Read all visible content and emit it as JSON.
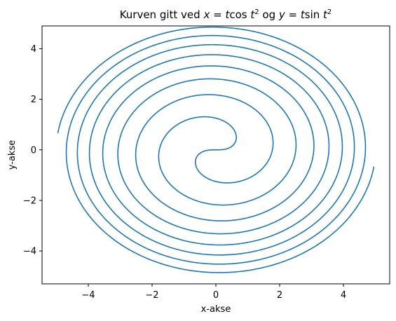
{
  "chart_data": {
    "type": "line",
    "title": "Kurven gitt ved x = tcos t² og y = tsin t²",
    "title_parts": {
      "prefix": "Kurven gitt ved ",
      "x_var": "x",
      "eq1": " = ",
      "t1": "t",
      "cos": "cos",
      "t2": " t",
      "sup1": "2",
      "og": " og ",
      "y_var": "y",
      "eq2": " = ",
      "t3": "t",
      "sin": "sin",
      "t4": " t",
      "sup2": "2"
    },
    "xlabel": "x-akse",
    "ylabel": "y-akse",
    "parametric": {
      "x": "t*cos(t^2)",
      "y": "t*sin(t^2)",
      "t_range": [
        -5,
        5
      ]
    },
    "xlim": [
      -5.45,
      5.45
    ],
    "ylim": [
      -5.3,
      4.9
    ],
    "xticks": [
      -4,
      -2,
      0,
      2,
      4
    ],
    "yticks": [
      -4,
      -2,
      0,
      2,
      4
    ],
    "xtick_labels": [
      "−4",
      "−2",
      "0",
      "2",
      "4"
    ],
    "ytick_labels": [
      "−4",
      "−2",
      "0",
      "2",
      "4"
    ],
    "grid": false,
    "legend": "none",
    "line_color": "#1f77b4"
  }
}
